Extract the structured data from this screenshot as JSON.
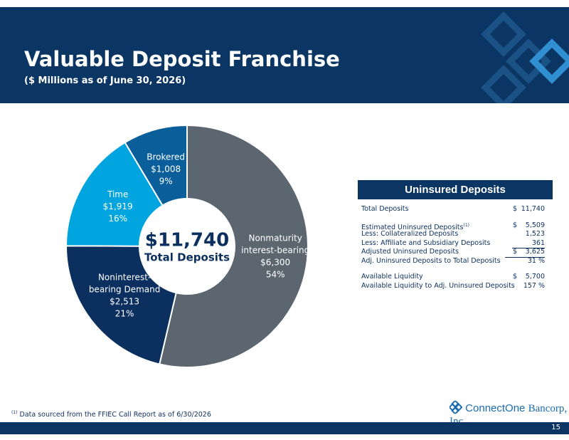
{
  "header": {
    "title": "Valuable Deposit Franchise",
    "subtitle": "($ Millions as of June 30, 2026)"
  },
  "chart_data": {
    "type": "donut",
    "categories": [
      [
        "Nonmaturity",
        "interest-bearing"
      ],
      [
        "Noninterest-",
        "bearing Demand"
      ],
      [
        "Time"
      ],
      [
        "Brokered"
      ]
    ],
    "values": [
      6300,
      2513,
      1919,
      1008
    ],
    "value_labels": [
      "$6,300",
      "$2,513",
      "$1,919",
      "$1,008"
    ],
    "percent_labels": [
      "54%",
      "21%",
      "16%",
      "9%"
    ],
    "colors": [
      "#5c6670",
      "#0b2f5e",
      "#00a5df",
      "#0a5e9a"
    ],
    "center_title": "$11,740",
    "center_subtitle": "Total Deposits"
  },
  "table": {
    "title": "Uninsured Deposits",
    "groups": [
      [
        {
          "label": "Total Deposits",
          "currency": "$",
          "value": "11,740"
        }
      ],
      [
        {
          "label": "Estimated Uninsured Deposits",
          "note": "(1)",
          "currency": "$",
          "value": "5,509"
        },
        {
          "label": "Less: Collateralized Deposits",
          "value": "1,523"
        },
        {
          "label": "Less: Affiliate and Subsidiary Deposits",
          "value": "361",
          "underline": true
        },
        {
          "label": "Adjusted Uninsured Deposits",
          "currency": "$",
          "value": "3,625",
          "underline": true
        },
        {
          "label": "Adj. Uninsured Deposits to Total Deposits",
          "value": "31 %"
        }
      ],
      [
        {
          "label": "Available Liquidity",
          "currency": "$",
          "value": "5,700"
        },
        {
          "label": "Available Liquidity to Adj. Uninsured Deposits",
          "value": "157 %"
        }
      ]
    ]
  },
  "footnote": {
    "marker": "(1)",
    "text": "Data sourced from the FFIEC Call Report as of 6/30/2026"
  },
  "logo": {
    "name": "ConnectOne",
    "suffix": "Bancorp, Inc."
  },
  "page_number": "15"
}
